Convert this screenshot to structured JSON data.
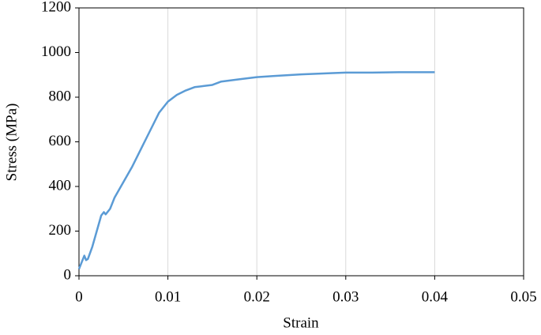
{
  "chart_data": {
    "type": "line",
    "x_label": "Strain",
    "y_label": "Stress (MPa)",
    "x": [
      0,
      0.0003,
      0.0006,
      0.0008,
      0.001,
      0.0015,
      0.002,
      0.0025,
      0.0028,
      0.003,
      0.0035,
      0.004,
      0.005,
      0.006,
      0.007,
      0.008,
      0.009,
      0.01,
      0.011,
      0.012,
      0.013,
      0.014,
      0.015,
      0.016,
      0.018,
      0.02,
      0.022,
      0.025,
      0.028,
      0.03,
      0.033,
      0.036,
      0.038,
      0.04
    ],
    "series": [
      {
        "color": "#5b9bd5",
        "values": [
          30,
          60,
          90,
          70,
          75,
          130,
          200,
          270,
          285,
          275,
          300,
          350,
          420,
          490,
          570,
          650,
          730,
          780,
          810,
          830,
          845,
          850,
          855,
          870,
          880,
          890,
          895,
          902,
          907,
          910,
          910,
          912,
          912,
          912
        ]
      }
    ],
    "xlim": [
      0,
      0.05
    ],
    "xticks": [
      0,
      0.01,
      0.02,
      0.03,
      0.04,
      0.05
    ],
    "ylim": [
      0,
      1200
    ],
    "yticks": [
      0,
      200,
      400,
      600,
      800,
      1000,
      1200
    ],
    "xgrid": true,
    "ygrid": false
  }
}
